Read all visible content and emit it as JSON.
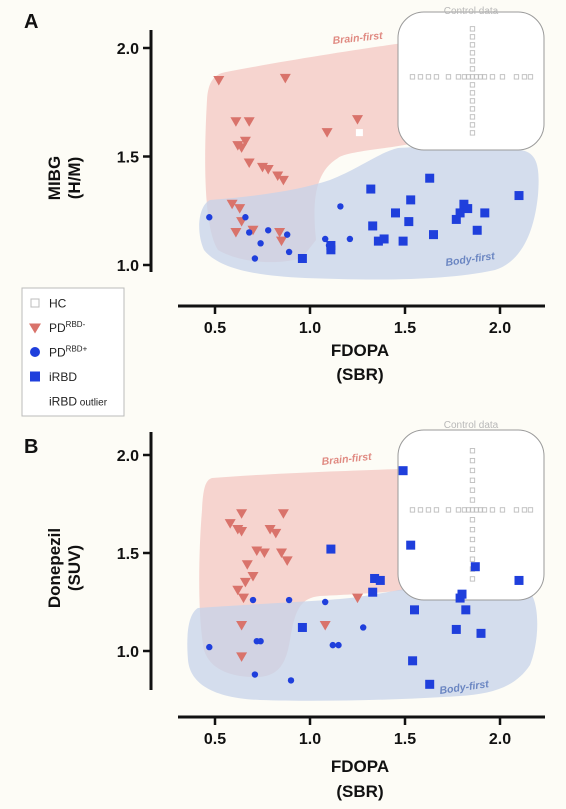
{
  "legend": {
    "items": [
      {
        "key": "HC",
        "label": "HC",
        "sup": "",
        "small": ""
      },
      {
        "key": "PD_RBD_neg",
        "label": "PD",
        "sup": "RBD-",
        "small": ""
      },
      {
        "key": "PD_RBD_pos",
        "label": "PD",
        "sup": "RBD+",
        "small": ""
      },
      {
        "key": "iRBD",
        "label": "iRBD",
        "sup": "",
        "small": ""
      },
      {
        "key": "iRBD_outlier",
        "label": "iRBD",
        "sup": "",
        "small": " outlier"
      }
    ]
  },
  "colors": {
    "HC": "#bdbdbd",
    "PD_RBD_neg": "#d9736b",
    "PD_RBD_pos": "#1f3fdc",
    "iRBD": "#1f3fdc",
    "brain_region": "#f3c7c2",
    "body_region": "#c6d3ea",
    "brain_text": "#e08a82",
    "body_text": "#6b86c2"
  },
  "chart_data": [
    {
      "type": "scatter",
      "panel_label": "A",
      "title": "",
      "xlabel": "FDOPA",
      "xunit": "(SBR)",
      "ylabel": "MIBG",
      "yunit": "(H/M)",
      "xlim": [
        0.3,
        2.25
      ],
      "ylim": [
        0.95,
        2.1
      ],
      "xticks": [
        "0.5",
        "1.0",
        "1.5",
        "2.0"
      ],
      "yticks": [
        "1.0",
        "1.5",
        "2.0"
      ],
      "region_labels": {
        "brain": "Brain-first",
        "body": "Body-first",
        "control": "Control data"
      },
      "series": [
        {
          "name": "PD RBD-",
          "key": "PD_RBD_neg",
          "marker": "triangle",
          "points": [
            [
              0.52,
              1.85
            ],
            [
              0.87,
              1.86
            ],
            [
              0.61,
              1.66
            ],
            [
              0.68,
              1.66
            ],
            [
              0.66,
              1.57
            ],
            [
              0.62,
              1.55
            ],
            [
              0.64,
              1.54
            ],
            [
              0.68,
              1.47
            ],
            [
              0.75,
              1.45
            ],
            [
              0.78,
              1.44
            ],
            [
              0.83,
              1.41
            ],
            [
              0.86,
              1.39
            ],
            [
              1.09,
              1.61
            ],
            [
              1.25,
              1.67
            ],
            [
              0.59,
              1.28
            ],
            [
              0.63,
              1.26
            ],
            [
              0.64,
              1.2
            ],
            [
              0.7,
              1.16
            ],
            [
              0.61,
              1.15
            ],
            [
              0.85,
              1.11
            ],
            [
              0.84,
              1.15
            ]
          ]
        },
        {
          "name": "PD RBD+",
          "key": "PD_RBD_pos",
          "marker": "circle",
          "points": [
            [
              0.47,
              1.22
            ],
            [
              0.66,
              1.22
            ],
            [
              0.68,
              1.15
            ],
            [
              0.71,
              1.03
            ],
            [
              0.74,
              1.1
            ],
            [
              0.78,
              1.16
            ],
            [
              0.88,
              1.14
            ],
            [
              0.89,
              1.06
            ],
            [
              1.08,
              1.12
            ],
            [
              1.1,
              1.09
            ],
            [
              1.16,
              1.27
            ],
            [
              1.21,
              1.12
            ]
          ]
        },
        {
          "name": "iRBD",
          "key": "iRBD",
          "marker": "square",
          "points": [
            [
              0.96,
              1.03
            ],
            [
              1.11,
              1.07
            ],
            [
              1.11,
              1.09
            ],
            [
              1.32,
              1.35
            ],
            [
              1.33,
              1.18
            ],
            [
              1.36,
              1.11
            ],
            [
              1.39,
              1.12
            ],
            [
              1.45,
              1.24
            ],
            [
              1.49,
              1.11
            ],
            [
              1.52,
              1.2
            ],
            [
              1.53,
              1.3
            ],
            [
              1.63,
              1.4
            ],
            [
              1.65,
              1.14
            ],
            [
              1.77,
              1.21
            ],
            [
              1.79,
              1.24
            ],
            [
              1.81,
              1.28
            ],
            [
              1.83,
              1.26
            ],
            [
              1.88,
              1.16
            ],
            [
              1.92,
              1.24
            ],
            [
              2.1,
              1.32
            ]
          ]
        },
        {
          "name": "iRBD outlier",
          "key": "iRBD_outlier",
          "marker": "square-open",
          "points": [
            [
              1.26,
              1.61
            ]
          ]
        }
      ]
    },
    {
      "type": "scatter",
      "panel_label": "B",
      "title": "",
      "xlabel": "FDOPA",
      "xunit": "(SBR)",
      "ylabel": "Donepezil",
      "yunit": "(SUV)",
      "xlim": [
        0.3,
        2.25
      ],
      "ylim": [
        0.8,
        2.2
      ],
      "xticks": [
        "0.5",
        "1.0",
        "1.5",
        "2.0"
      ],
      "yticks": [
        "1.0",
        "1.5",
        "2.0"
      ],
      "region_labels": {
        "brain": "Brain-first",
        "body": "Body-first",
        "control": "Control data"
      },
      "series": [
        {
          "name": "PD RBD-",
          "key": "PD_RBD_neg",
          "marker": "triangle",
          "points": [
            [
              0.58,
              1.65
            ],
            [
              0.64,
              1.7
            ],
            [
              0.86,
              1.7
            ],
            [
              0.62,
              1.62
            ],
            [
              0.64,
              1.61
            ],
            [
              0.79,
              1.62
            ],
            [
              0.82,
              1.6
            ],
            [
              0.72,
              1.51
            ],
            [
              0.76,
              1.5
            ],
            [
              0.85,
              1.5
            ],
            [
              0.88,
              1.46
            ],
            [
              0.67,
              1.44
            ],
            [
              0.7,
              1.38
            ],
            [
              0.66,
              1.35
            ],
            [
              0.62,
              1.31
            ],
            [
              0.65,
              1.27
            ],
            [
              0.64,
              1.13
            ],
            [
              0.64,
              0.97
            ],
            [
              1.08,
              1.13
            ],
            [
              1.25,
              1.27
            ]
          ]
        },
        {
          "name": "PD RBD+",
          "key": "PD_RBD_pos",
          "marker": "circle",
          "points": [
            [
              0.47,
              1.02
            ],
            [
              0.7,
              1.26
            ],
            [
              0.71,
              0.88
            ],
            [
              0.72,
              1.05
            ],
            [
              0.74,
              1.05
            ],
            [
              0.89,
              1.26
            ],
            [
              0.9,
              0.85
            ],
            [
              1.08,
              1.25
            ],
            [
              1.12,
              1.03
            ],
            [
              1.15,
              1.03
            ],
            [
              1.28,
              1.12
            ]
          ]
        },
        {
          "name": "iRBD",
          "key": "iRBD",
          "marker": "square",
          "points": [
            [
              0.96,
              1.12
            ],
            [
              1.11,
              1.52
            ],
            [
              1.33,
              1.3
            ],
            [
              1.34,
              1.37
            ],
            [
              1.37,
              1.36
            ],
            [
              1.49,
              1.92
            ],
            [
              1.53,
              1.54
            ],
            [
              1.54,
              0.95
            ],
            [
              1.55,
              1.21
            ],
            [
              1.63,
              0.83
            ],
            [
              1.77,
              1.11
            ],
            [
              1.79,
              1.27
            ],
            [
              1.8,
              1.29
            ],
            [
              1.82,
              1.21
            ],
            [
              1.87,
              1.43
            ],
            [
              1.9,
              1.09
            ],
            [
              2.1,
              1.36
            ]
          ]
        }
      ]
    }
  ]
}
